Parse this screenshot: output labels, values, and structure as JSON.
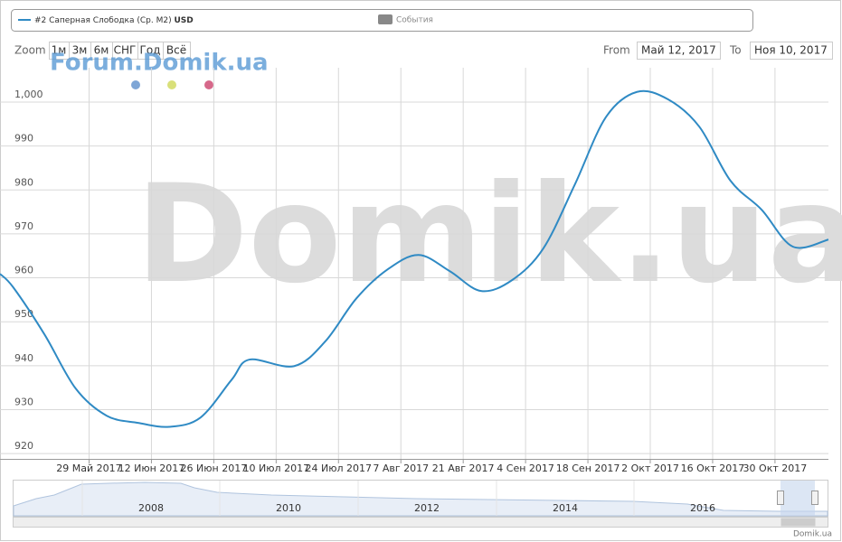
{
  "chart_data": {
    "type": "line",
    "series": [
      {
        "name": "#2 Саперная Слободка (Ср. М2)",
        "color": "#2f8ac4",
        "x": [
          "2017-05-09",
          "2017-05-12",
          "2017-05-19",
          "2017-05-26",
          "2017-06-02",
          "2017-06-09",
          "2017-06-16",
          "2017-06-23",
          "2017-06-30",
          "2017-07-04",
          "2017-07-14",
          "2017-07-21",
          "2017-07-28",
          "2017-08-04",
          "2017-08-11",
          "2017-08-18",
          "2017-08-25",
          "2017-09-01",
          "2017-09-08",
          "2017-09-15",
          "2017-09-22",
          "2017-09-29",
          "2017-10-06",
          "2017-10-13",
          "2017-10-20",
          "2017-10-27",
          "2017-11-03",
          "2017-11-11"
        ],
        "values": [
          960.9,
          957.8,
          947.1,
          934.8,
          928.6,
          927.0,
          926.1,
          928.2,
          936.8,
          941.4,
          939.9,
          945.5,
          955.3,
          961.9,
          965.2,
          961.5,
          957.0,
          959.5,
          966.7,
          981.1,
          996.5,
          1002.3,
          1000.6,
          994.4,
          982.1,
          975.5,
          967.1,
          968.7
        ]
      }
    ],
    "unit": "USD",
    "xlim": [
      "2017-05-09",
      "2017-11-11"
    ],
    "xticks": [
      {
        "value": "2017-05-29",
        "label": "29 Май 2017"
      },
      {
        "value": "2017-06-12",
        "label": "12 Июн 2017"
      },
      {
        "value": "2017-06-26",
        "label": "26 Июн 2017"
      },
      {
        "value": "2017-07-10",
        "label": "10 Июл 2017"
      },
      {
        "value": "2017-07-24",
        "label": "24 Июл 2017"
      },
      {
        "value": "2017-08-07",
        "label": "7 Авг 2017"
      },
      {
        "value": "2017-08-21",
        "label": "21 Авг 2017"
      },
      {
        "value": "2017-09-04",
        "label": "4 Сен 2017"
      },
      {
        "value": "2017-09-18",
        "label": "18 Сен 2017"
      },
      {
        "value": "2017-10-02",
        "label": "2 Окт 2017"
      },
      {
        "value": "2017-10-16",
        "label": "16 Окт 2017"
      },
      {
        "value": "2017-10-30",
        "label": "30 Окт 2017"
      }
    ],
    "ylim": [
      918.8,
      1007.8
    ],
    "yticks": [
      920,
      930,
      940,
      950,
      960,
      970,
      980,
      990,
      {
        "value": 1000,
        "label": "1,000"
      }
    ],
    "grid": true
  },
  "ui": {
    "events": "События",
    "zoom": "Zoom",
    "buttons": [
      "1м",
      "3м",
      "6м",
      "СНГ",
      "Год",
      "Всё"
    ],
    "from_label": "From",
    "from": "Май 12, 2017",
    "to_label": "To",
    "to": "Ноя 10, 2017",
    "watermark_small": "Forum.Domik.ua",
    "watermark_big": "Domik.ua",
    "navigator_labels": [
      "2008",
      "2010",
      "2012",
      "2014",
      "2016"
    ],
    "credits": "Domik.ua"
  }
}
